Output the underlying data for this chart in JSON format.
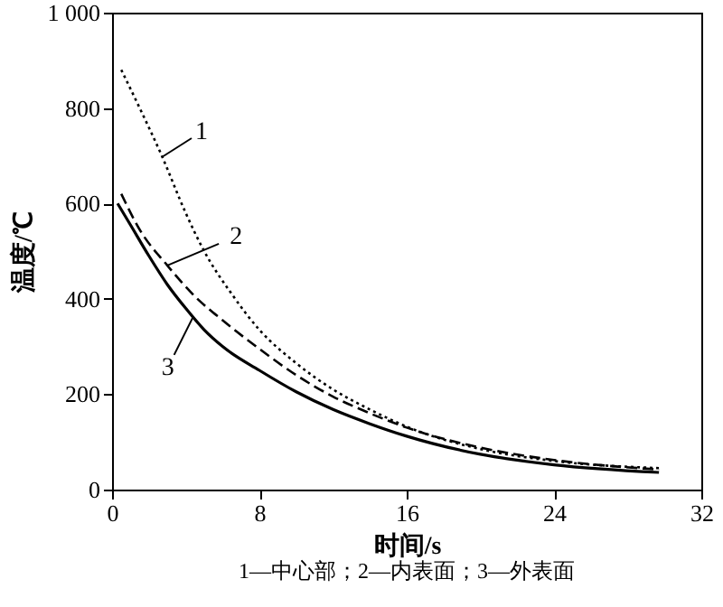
{
  "chart_data": {
    "type": "line",
    "xlabel": "时间/s",
    "ylabel": "温度/℃",
    "xlim": [
      0,
      32
    ],
    "xticks": [
      0,
      8,
      16,
      24,
      32
    ],
    "ylim": [
      0,
      1000
    ],
    "yticks": [
      0,
      200,
      400,
      600,
      800,
      {
        "value": 1000,
        "label": "1 000"
      }
    ],
    "grid": false,
    "marker": "none",
    "series": [
      {
        "color": "#000000",
        "line_style": "dotted",
        "x": [
          0.5,
          1.5,
          2.7,
          4,
          5,
          6.5,
          8,
          10,
          12,
          14,
          16,
          20,
          24,
          29.7
        ],
        "values": [
          880,
          800,
          700,
          580,
          500,
          410,
          335,
          265,
          210,
          168,
          132,
          85,
          60,
          45
        ]
      },
      {
        "color": "#000000",
        "line_style": "dashed",
        "x": [
          0.5,
          1.5,
          3,
          4.5,
          6,
          8,
          10,
          12,
          14,
          16,
          20,
          24,
          29.7
        ],
        "values": [
          620,
          545,
          470,
          405,
          355,
          295,
          240,
          195,
          160,
          130,
          88,
          62,
          42
        ]
      },
      {
        "color": "#000000",
        "line_style": "solid",
        "x": [
          0.3,
          1,
          2,
          3,
          4,
          5,
          6,
          8,
          10,
          12,
          14,
          16,
          20,
          24,
          29.7
        ],
        "values": [
          600,
          555,
          490,
          430,
          380,
          335,
          300,
          250,
          205,
          168,
          138,
          112,
          74,
          52,
          36
        ]
      }
    ],
    "annotations": [
      {
        "text": "1",
        "x": 2.7,
        "y": 697
      },
      {
        "text": "2",
        "x": 3,
        "y": 470
      },
      {
        "text": "3",
        "x": 4.4,
        "y": 362
      },
      "1—中心部；2—内表面；3—外表面"
    ]
  }
}
